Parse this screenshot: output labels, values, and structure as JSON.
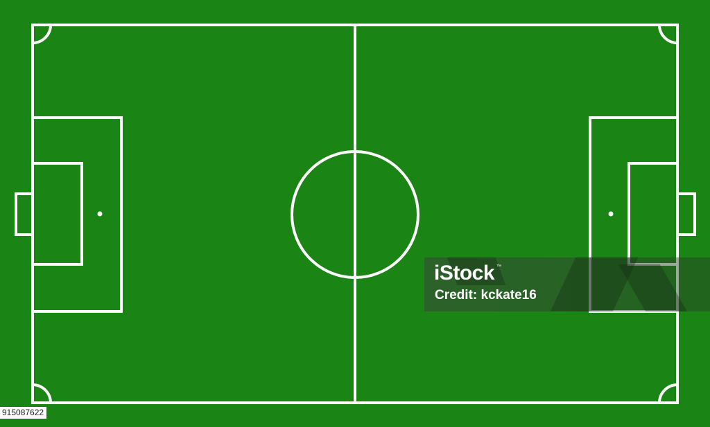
{
  "pitch": {
    "grass_color": "#1a8414",
    "line_color": "#ffffff"
  },
  "watermark": {
    "brand": "iStock",
    "trademark": "™",
    "credit": "Credit: kckate16"
  },
  "image_id": "915087622"
}
